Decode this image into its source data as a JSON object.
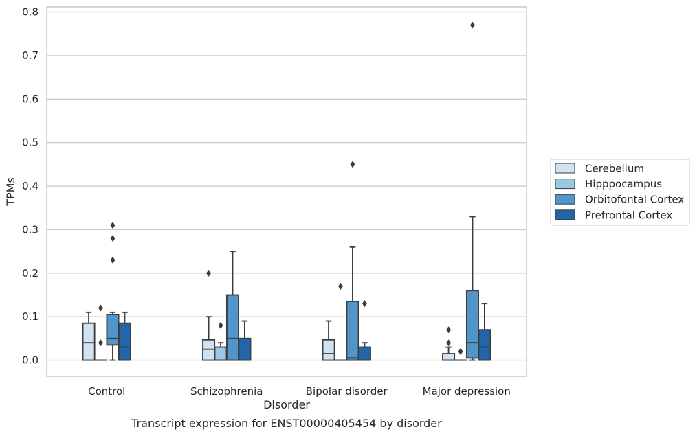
{
  "chart_data": {
    "type": "box",
    "title": "Transcript expression for ENST00000405454 by disorder",
    "xlabel": "Disorder",
    "ylabel": "TPMs",
    "ylim": [
      -0.037,
      0.812
    ],
    "yticks": [
      "0.0",
      "0.1",
      "0.2",
      "0.3",
      "0.4",
      "0.5",
      "0.6",
      "0.7",
      "0.8"
    ],
    "categories": [
      "Control",
      "Schizophrenia",
      "Bipolar disorder",
      "Major depression"
    ],
    "grid": "horizontal",
    "legend_position": "right",
    "series": [
      {
        "name": "Cerebellum",
        "color": "#d1e2f2",
        "boxes": [
          {
            "category": "Control",
            "min": 0.0,
            "q1": 0.0,
            "median": 0.04,
            "q3": 0.085,
            "max": 0.11,
            "outliers": []
          },
          {
            "category": "Schizophrenia",
            "min": 0.0,
            "q1": 0.0,
            "median": 0.025,
            "q3": 0.047,
            "max": 0.1,
            "outliers": [
              0.2
            ]
          },
          {
            "category": "Bipolar disorder",
            "min": 0.0,
            "q1": 0.0,
            "median": 0.015,
            "q3": 0.047,
            "max": 0.09,
            "outliers": []
          },
          {
            "category": "Major depression",
            "min": 0.0,
            "q1": 0.0,
            "median": 0.0,
            "q3": 0.015,
            "max": 0.03,
            "outliers": [
              0.04,
              0.07
            ]
          }
        ]
      },
      {
        "name": "Hipppocampus",
        "color": "#9ac8e0",
        "boxes": [
          {
            "category": "Control",
            "min": 0.0,
            "q1": 0.0,
            "median": 0.0,
            "q3": 0.0,
            "max": 0.0,
            "outliers": [
              0.04,
              0.12
            ]
          },
          {
            "category": "Schizophrenia",
            "min": 0.0,
            "q1": 0.0,
            "median": 0.0,
            "q3": 0.03,
            "max": 0.04,
            "outliers": [
              0.08
            ]
          },
          {
            "category": "Bipolar disorder",
            "min": 0.0,
            "q1": 0.0,
            "median": 0.0,
            "q3": 0.0,
            "max": 0.0,
            "outliers": [
              0.17
            ]
          },
          {
            "category": "Major depression",
            "min": 0.0,
            "q1": 0.0,
            "median": 0.0,
            "q3": 0.0,
            "max": 0.0,
            "outliers": [
              0.02
            ]
          }
        ]
      },
      {
        "name": "Orbitofontal Cortex",
        "color": "#5296c9",
        "boxes": [
          {
            "category": "Control",
            "min": 0.0,
            "q1": 0.035,
            "median": 0.05,
            "q3": 0.105,
            "max": 0.11,
            "outliers": [
              0.23,
              0.28,
              0.31
            ]
          },
          {
            "category": "Schizophrenia",
            "min": 0.0,
            "q1": 0.0,
            "median": 0.05,
            "q3": 0.15,
            "max": 0.25,
            "outliers": []
          },
          {
            "category": "Bipolar disorder",
            "min": 0.0,
            "q1": 0.0,
            "median": 0.005,
            "q3": 0.135,
            "max": 0.26,
            "outliers": [
              0.45
            ]
          },
          {
            "category": "Major depression",
            "min": 0.0,
            "q1": 0.005,
            "median": 0.04,
            "q3": 0.16,
            "max": 0.33,
            "outliers": [
              0.77
            ]
          }
        ]
      },
      {
        "name": "Prefrontal Cortex",
        "color": "#2265a9",
        "boxes": [
          {
            "category": "Control",
            "min": 0.0,
            "q1": 0.0,
            "median": 0.03,
            "q3": 0.085,
            "max": 0.11,
            "outliers": []
          },
          {
            "category": "Schizophrenia",
            "min": 0.0,
            "q1": 0.0,
            "median": 0.05,
            "q3": 0.05,
            "max": 0.09,
            "outliers": []
          },
          {
            "category": "Bipolar disorder",
            "min": 0.0,
            "q1": 0.0,
            "median": 0.03,
            "q3": 0.03,
            "max": 0.04,
            "outliers": [
              0.13
            ]
          },
          {
            "category": "Major depression",
            "min": 0.0,
            "q1": 0.0,
            "median": 0.03,
            "q3": 0.07,
            "max": 0.13,
            "outliers": []
          }
        ]
      }
    ]
  }
}
